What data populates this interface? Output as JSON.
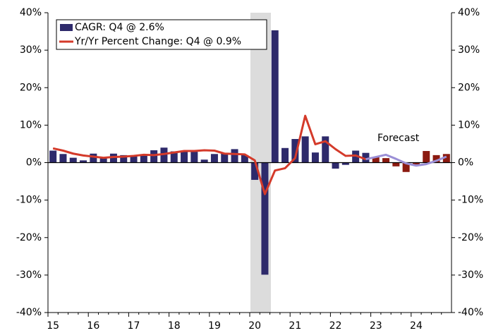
{
  "chart_data": {
    "type": "bar_line",
    "categories": [
      "15",
      null,
      null,
      null,
      "16",
      null,
      null,
      null,
      "17",
      null,
      null,
      null,
      "18",
      null,
      null,
      null,
      "19",
      null,
      null,
      null,
      "20",
      null,
      null,
      null,
      "21",
      null,
      null,
      null,
      "22",
      null,
      null,
      null,
      "23",
      null,
      null,
      null,
      "24",
      null,
      null,
      null
    ],
    "series": [
      {
        "name": "CAGR: Q4 @ 2.6%",
        "kind": "bar",
        "color": "#2e2a6b",
        "values": [
          3.2,
          2.3,
          1.3,
          0.6,
          2.4,
          1.2,
          2.4,
          2.0,
          1.9,
          2.0,
          3.3,
          4.0,
          3.0,
          3.0,
          2.9,
          0.8,
          2.3,
          2.6,
          3.6,
          2.0,
          -4.6,
          -29.9,
          35.3,
          3.9,
          6.3,
          7.0,
          2.7,
          7.0,
          -1.6,
          -0.6,
          3.2,
          2.6,
          null,
          null,
          null,
          null,
          null,
          null,
          null,
          null
        ]
      },
      {
        "kind": "bar",
        "color": "#8b1a10",
        "values": [
          null,
          null,
          null,
          null,
          null,
          null,
          null,
          null,
          null,
          null,
          null,
          null,
          null,
          null,
          null,
          null,
          null,
          null,
          null,
          null,
          null,
          null,
          null,
          null,
          null,
          null,
          null,
          null,
          null,
          null,
          null,
          null,
          1.4,
          1.2,
          -1.0,
          -2.5,
          -0.5,
          3.1,
          2.0,
          2.3
        ]
      },
      {
        "name": "Yr/Yr Percent Change: Q4 @ 0.9%",
        "kind": "line",
        "color": "#d43a2a",
        "values": [
          3.8,
          3.2,
          2.4,
          1.9,
          1.6,
          1.3,
          1.5,
          1.6,
          1.8,
          2.1,
          2.0,
          2.3,
          2.7,
          3.1,
          3.1,
          3.3,
          3.2,
          2.4,
          2.3,
          2.2,
          0.6,
          -8.4,
          -2.1,
          -1.5,
          1.2,
          12.5,
          4.9,
          5.7,
          3.6,
          1.8,
          1.9,
          0.9,
          null,
          null,
          null,
          null,
          null,
          null,
          null,
          null
        ]
      },
      {
        "kind": "line",
        "color": "#9b8fd6",
        "values": [
          null,
          null,
          null,
          null,
          null,
          null,
          null,
          null,
          null,
          null,
          null,
          null,
          null,
          null,
          null,
          null,
          null,
          null,
          null,
          null,
          null,
          null,
          null,
          null,
          null,
          null,
          null,
          null,
          null,
          null,
          null,
          0.9,
          1.5,
          2.1,
          1.0,
          -0.2,
          -0.8,
          -0.4,
          0.5,
          1.6
        ]
      }
    ],
    "annotation": "Forecast",
    "ylim": [
      -40,
      40
    ],
    "yticks": [
      {
        "value": -40,
        "label": "-40%"
      },
      {
        "value": -30,
        "label": "-30%"
      },
      {
        "value": -20,
        "label": "-20%"
      },
      {
        "value": -10,
        "label": "-10%"
      },
      {
        "value": 0,
        "label": "0%"
      },
      {
        "value": 10,
        "label": "10%"
      },
      {
        "value": 20,
        "label": "20%"
      },
      {
        "value": 30,
        "label": "30%"
      },
      {
        "value": 40,
        "label": "40%"
      }
    ],
    "y2lim": [
      -40,
      40
    ],
    "y2ticks": [
      {
        "value": -40,
        "label": "-40%"
      },
      {
        "value": -30,
        "label": "-30%"
      },
      {
        "value": -20,
        "label": "-20%"
      },
      {
        "value": -10,
        "label": "-10%"
      },
      {
        "value": 0,
        "label": "0%"
      },
      {
        "value": 10,
        "label": "10%"
      },
      {
        "value": 20,
        "label": "20%"
      },
      {
        "value": 30,
        "label": "30%"
      },
      {
        "value": 40,
        "label": "40%"
      }
    ],
    "legend": "top-left"
  }
}
